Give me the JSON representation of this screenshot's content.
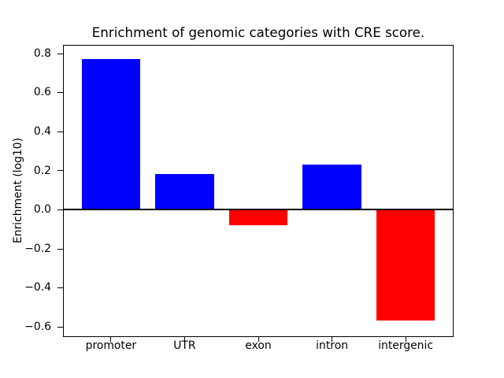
{
  "figure": {
    "background": "#ffffff",
    "frame_color": "#000000",
    "text_color": "#000000"
  },
  "chart_data": {
    "type": "bar",
    "title": "Enrichment of genomic categories with CRE score.",
    "ylabel": "Enrichment (log10)",
    "xlabel": "",
    "categories": [
      "promoter",
      "UTR",
      "exon",
      "intron",
      "intergenic"
    ],
    "values": [
      0.77,
      0.18,
      -0.08,
      0.23,
      -0.57
    ],
    "bar_colors": [
      "#0000ff",
      "#0000ff",
      "#ff0000",
      "#0000ff",
      "#ff0000"
    ],
    "color_rule": {
      "positive": "#0000ff",
      "negative": "#ff0000"
    },
    "ylim": [
      -0.65,
      0.84
    ],
    "yticks": [
      0.8,
      0.6,
      0.4,
      0.2,
      0.0,
      -0.2,
      -0.4,
      -0.6
    ],
    "ytick_labels": [
      "0.8",
      "0.6",
      "0.4",
      "0.2",
      "0.0",
      "−0.2",
      "−0.4",
      "−0.6"
    ],
    "zero_line": true,
    "grid": false,
    "legend": null
  }
}
